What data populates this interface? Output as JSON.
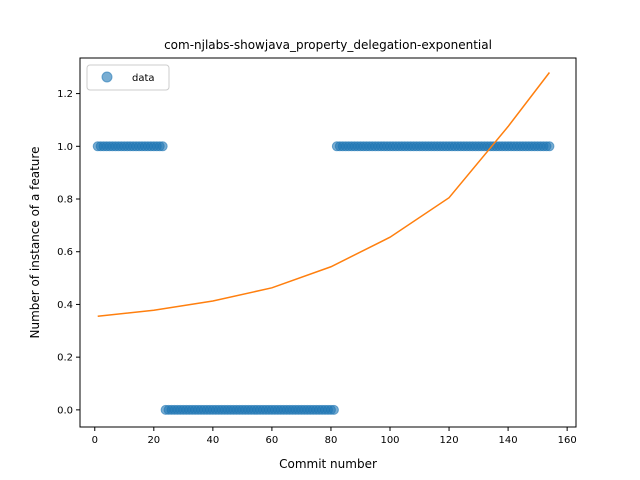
{
  "chart_data": {
    "type": "scatter",
    "title": "com-njlabs-showjava_property_delegation-exponential",
    "xlabel": "Commit number",
    "ylabel": "Number of instance of a feature",
    "xlim": [
      -5,
      163
    ],
    "ylim": [
      -0.065,
      1.335
    ],
    "xticks": [
      0,
      20,
      40,
      60,
      80,
      100,
      120,
      140,
      160
    ],
    "yticks": [
      0.0,
      0.2,
      0.4,
      0.6,
      0.8,
      1.0,
      1.2
    ],
    "legend": {
      "position": "top-left",
      "entries": [
        "data"
      ]
    },
    "grid": false,
    "series": [
      {
        "name": "data",
        "kind": "scatter",
        "color": "#1f77b4",
        "segments": [
          {
            "x_start": 1,
            "x_end": 23,
            "y": 1
          },
          {
            "x_start": 24,
            "x_end": 81,
            "y": 0
          },
          {
            "x_start": 82,
            "x_end": 154,
            "y": 1
          }
        ]
      },
      {
        "name": "",
        "kind": "line",
        "color": "#ff7f0e",
        "x": [
          1,
          20,
          40,
          60,
          80,
          100,
          120,
          140,
          154
        ],
        "y": [
          0.355,
          0.378,
          0.413,
          0.463,
          0.543,
          0.655,
          0.805,
          1.075,
          1.28
        ]
      }
    ]
  }
}
